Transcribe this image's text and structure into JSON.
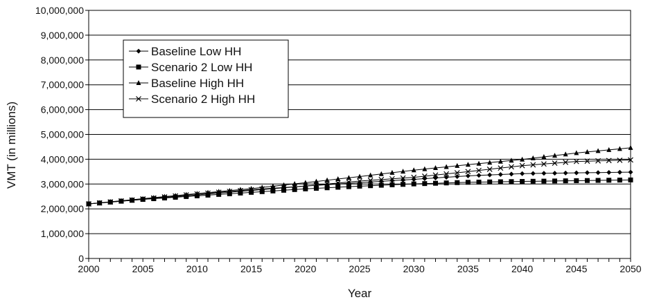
{
  "chart_data": {
    "type": "line",
    "title": "",
    "xlabel": "Year",
    "ylabel": "VMT (in millions)",
    "xlim": [
      2000,
      2050
    ],
    "ylim": [
      0,
      10000000
    ],
    "x_ticks": [
      2000,
      2005,
      2010,
      2015,
      2020,
      2025,
      2030,
      2035,
      2040,
      2045,
      2050
    ],
    "x_tick_labels": [
      "2000",
      "2005",
      "2010",
      "2015",
      "2020",
      "2025",
      "2030",
      "2035",
      "2040",
      "2045",
      "2050"
    ],
    "y_ticks": [
      0,
      1000000,
      2000000,
      3000000,
      4000000,
      5000000,
      6000000,
      7000000,
      8000000,
      9000000,
      10000000
    ],
    "y_tick_labels": [
      "0",
      "1,000,000",
      "2,000,000",
      "3,000,000",
      "4,000,000",
      "5,000,000",
      "6,000,000",
      "7,000,000",
      "8,000,000",
      "9,000,000",
      "10,000,000"
    ],
    "grid": "horizontal",
    "legend_position": "top-left",
    "x": [
      2000,
      2001,
      2002,
      2003,
      2004,
      2005,
      2006,
      2007,
      2008,
      2009,
      2010,
      2011,
      2012,
      2013,
      2014,
      2015,
      2016,
      2017,
      2018,
      2019,
      2020,
      2021,
      2022,
      2023,
      2024,
      2025,
      2026,
      2027,
      2028,
      2029,
      2030,
      2031,
      2032,
      2033,
      2034,
      2035,
      2036,
      2037,
      2038,
      2039,
      2040,
      2041,
      2042,
      2043,
      2044,
      2045,
      2046,
      2047,
      2048,
      2049,
      2050
    ],
    "series": [
      {
        "name": "Baseline Low HH",
        "marker": "diamond",
        "values": [
          2200000,
          2236000,
          2272000,
          2308000,
          2344000,
          2380000,
          2416000,
          2452000,
          2488000,
          2524000,
          2560000,
          2596000,
          2632000,
          2668000,
          2704000,
          2740000,
          2776000,
          2812000,
          2848000,
          2884000,
          2920000,
          2947000,
          2974000,
          3001000,
          3028000,
          3055000,
          3082000,
          3109000,
          3136000,
          3163000,
          3190000,
          3218000,
          3246000,
          3274000,
          3302000,
          3330000,
          3348000,
          3366000,
          3384000,
          3402000,
          3420000,
          3426000,
          3432000,
          3438000,
          3444000,
          3450000,
          3456000,
          3462000,
          3468000,
          3474000,
          3480000
        ]
      },
      {
        "name": "Scenario 2 Low HH",
        "marker": "square",
        "values": [
          2200000,
          2236000,
          2272000,
          2308000,
          2344000,
          2380000,
          2409000,
          2438000,
          2467000,
          2496000,
          2525000,
          2553000,
          2581000,
          2609000,
          2637000,
          2665000,
          2693000,
          2721000,
          2749000,
          2777000,
          2805000,
          2827000,
          2849000,
          2871000,
          2893000,
          2915000,
          2933000,
          2951000,
          2969000,
          2987000,
          3005000,
          3018000,
          3031000,
          3044000,
          3057000,
          3070000,
          3077000,
          3084000,
          3091000,
          3098000,
          3105000,
          3111000,
          3117000,
          3123000,
          3129000,
          3135000,
          3141000,
          3147000,
          3153000,
          3159000,
          3165000
        ]
      },
      {
        "name": "Baseline High HH",
        "marker": "triangle",
        "values": [
          2200000,
          2242000,
          2284000,
          2326000,
          2368000,
          2410000,
          2451000,
          2492000,
          2533000,
          2574000,
          2615000,
          2655000,
          2695000,
          2735000,
          2775000,
          2815000,
          2863000,
          2911000,
          2959000,
          3007000,
          3055000,
          3104000,
          3153000,
          3202000,
          3251000,
          3300000,
          3352000,
          3404000,
          3456000,
          3508000,
          3560000,
          3604000,
          3648000,
          3692000,
          3736000,
          3780000,
          3822000,
          3864000,
          3906000,
          3948000,
          3990000,
          4042000,
          4094000,
          4146000,
          4198000,
          4250000,
          4292000,
          4334000,
          4376000,
          4418000,
          4460000
        ]
      },
      {
        "name": "Scenario 2 High HH",
        "marker": "x",
        "values": [
          2200000,
          2240000,
          2280000,
          2320000,
          2360000,
          2400000,
          2440000,
          2480000,
          2520000,
          2560000,
          2600000,
          2634000,
          2668000,
          2702000,
          2736000,
          2770000,
          2800000,
          2830000,
          2860000,
          2890000,
          2920000,
          2960000,
          3000000,
          3040000,
          3080000,
          3120000,
          3150000,
          3180000,
          3210000,
          3240000,
          3270000,
          3316000,
          3362000,
          3408000,
          3454000,
          3500000,
          3548000,
          3596000,
          3644000,
          3692000,
          3740000,
          3774000,
          3808000,
          3842000,
          3876000,
          3910000,
          3922000,
          3934000,
          3946000,
          3958000,
          3970000
        ]
      }
    ]
  }
}
